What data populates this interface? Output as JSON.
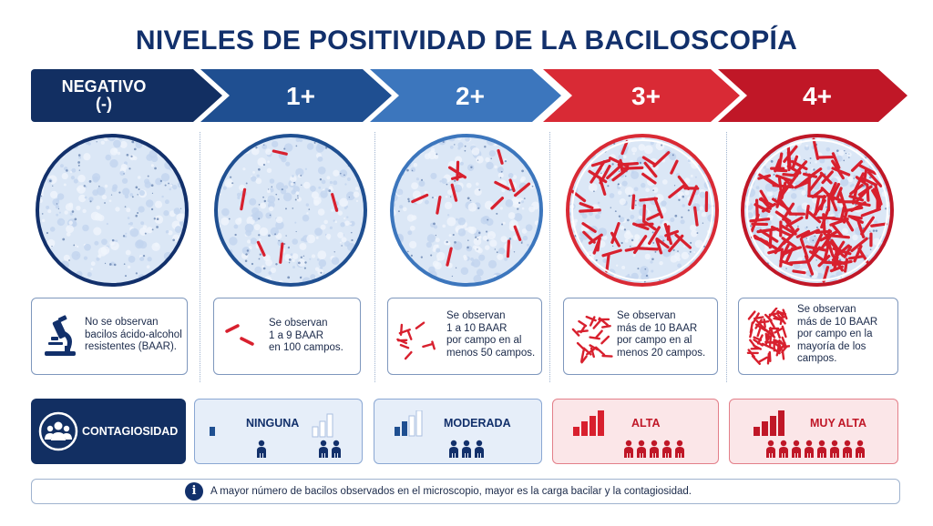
{
  "title": "NIVELES DE POSITIVIDAD DE LA BACILOSCOPÍA",
  "levels": [
    {
      "label": "NEGATIVO\n(-)",
      "description": "No se observan\nbacilos ácido-alcohol\nresistentes (BAAR).",
      "contagiousness": "",
      "bacilli_in_circle": 0
    },
    {
      "label": "1+",
      "description": "Se observan\n1 a 9 BAAR\nen 100 campos.",
      "contagiousness": "NINGUNA",
      "bacilli_in_circle": 5
    },
    {
      "label": "2+",
      "description": "Se observan\n1 a 10 BAAR\npor campo en al\nmenos 50 campos.",
      "contagiousness": "MODERADA",
      "bacilli_in_circle": 14
    },
    {
      "label": "3+",
      "description": "Se observan\nmás de 10 BAAR\npor campo en al\nmenos 20 campos.",
      "contagiousness": "ALTA",
      "bacilli_in_circle": 55
    },
    {
      "label": "4+",
      "description": "Se observan\nmás de 10 BAAR\npor campo en la\nmayoría de los\ncampos.",
      "contagiousness": "MUY ALTA",
      "bacilli_in_circle": 160
    }
  ],
  "contagiousness_header": "CONTAGIOSIDAD",
  "footer_note": "A mayor número de bacilos observados en el microscopio, mayor es la carga bacilar y la contagiosidad.",
  "colors": {
    "navy": "#122f62",
    "blue": "#1f4f91",
    "light_blue": "#3c76bd",
    "red": "#d92a35",
    "dark_red": "#c01727",
    "bacillus": "#d8202e"
  },
  "icons": {
    "microscope": "microscope-icon",
    "people_group": "people-group-icon",
    "info": "info-icon"
  }
}
